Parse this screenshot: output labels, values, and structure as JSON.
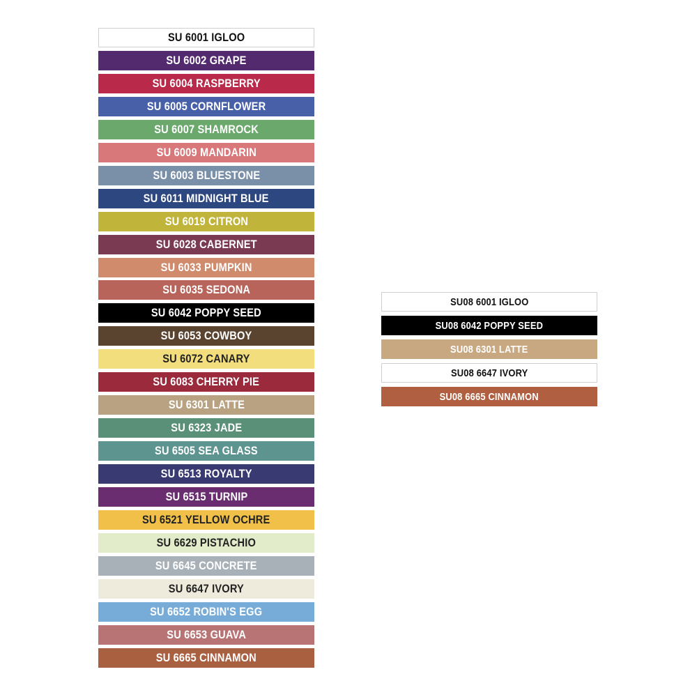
{
  "full_line": [
    {
      "label": "SU 6001 IGLOO",
      "color": "#ffffff",
      "text_color": "#111111",
      "bordered": true
    },
    {
      "label": "SU 6002 GRAPE",
      "color": "#542a6e",
      "text_color": "#ffffff"
    },
    {
      "label": "SU 6004 RASPBERRY",
      "color": "#b8294a",
      "text_color": "#ffffff"
    },
    {
      "label": "SU 6005 CORNFLOWER",
      "color": "#4860a8",
      "text_color": "#ffffff"
    },
    {
      "label": "SU 6007 SHAMROCK",
      "color": "#6aa86c",
      "text_color": "#ffffff"
    },
    {
      "label": "SU 6009 MANDARIN",
      "color": "#d8787a",
      "text_color": "#ffffff"
    },
    {
      "label": "SU 6003 BLUESTONE",
      "color": "#7a8fa8",
      "text_color": "#ffffff"
    },
    {
      "label": "SU 6011 MIDNIGHT BLUE",
      "color": "#2d4780",
      "text_color": "#ffffff"
    },
    {
      "label": "SU 6019 CITRON",
      "color": "#c0b43a",
      "text_color": "#ffffff"
    },
    {
      "label": "SU 6028 CABERNET",
      "color": "#7a3a52",
      "text_color": "#ffffff"
    },
    {
      "label": "SU 6033 PUMPKIN",
      "color": "#d08a6c",
      "text_color": "#ffffff"
    },
    {
      "label": "SU 6035 SEDONA",
      "color": "#b8645a",
      "text_color": "#ffffff"
    },
    {
      "label": "SU 6042 POPPY SEED",
      "color": "#000000",
      "text_color": "#ffffff"
    },
    {
      "label": "SU 6053 COWBOY",
      "color": "#5a4430",
      "text_color": "#ffffff"
    },
    {
      "label": "SU 6072 CANARY",
      "color": "#f2de7c",
      "text_color": "#222222"
    },
    {
      "label": "SU 6083 CHERRY PIE",
      "color": "#9a2a3c",
      "text_color": "#ffffff"
    },
    {
      "label": "SU 6301 LATTE",
      "color": "#b8a282",
      "text_color": "#ffffff"
    },
    {
      "label": "SU 6323 JADE",
      "color": "#5a9078",
      "text_color": "#ffffff"
    },
    {
      "label": "SU 6505 SEA GLASS",
      "color": "#5e9490",
      "text_color": "#ffffff"
    },
    {
      "label": "SU 6513 ROYALTY",
      "color": "#3a3a72",
      "text_color": "#ffffff"
    },
    {
      "label": "SU 6515 TURNIP",
      "color": "#6a2e70",
      "text_color": "#ffffff"
    },
    {
      "label": "SU 6521 YELLOW OCHRE",
      "color": "#f0c048",
      "text_color": "#222222"
    },
    {
      "label": "SU 6629 PISTACHIO",
      "color": "#e2ecca",
      "text_color": "#222222"
    },
    {
      "label": "SU 6645 CONCRETE",
      "color": "#a8b0b8",
      "text_color": "#ffffff"
    },
    {
      "label": "SU 6647 IVORY",
      "color": "#eeeadc",
      "text_color": "#222222"
    },
    {
      "label": "SU 6652 ROBIN'S EGG",
      "color": "#78acd8",
      "text_color": "#ffffff"
    },
    {
      "label": "SU 6653 GUAVA",
      "color": "#b87474",
      "text_color": "#ffffff"
    },
    {
      "label": "SU 6665 CINNAMON",
      "color": "#a86040",
      "text_color": "#ffffff"
    }
  ],
  "su08_line": [
    {
      "label": "SU08 6001 IGLOO",
      "color": "#ffffff",
      "text_color": "#111111",
      "bordered": true
    },
    {
      "label": "SU08 6042 POPPY SEED",
      "color": "#000000",
      "text_color": "#ffffff"
    },
    {
      "label": "SU08 6301 LATTE",
      "color": "#c8a880",
      "text_color": "#ffffff"
    },
    {
      "label": "SU08 6647 IVORY",
      "color": "#ffffff",
      "text_color": "#111111",
      "bordered": true
    },
    {
      "label": "SU08 6665 CINNAMON",
      "color": "#b06040",
      "text_color": "#ffffff"
    }
  ]
}
